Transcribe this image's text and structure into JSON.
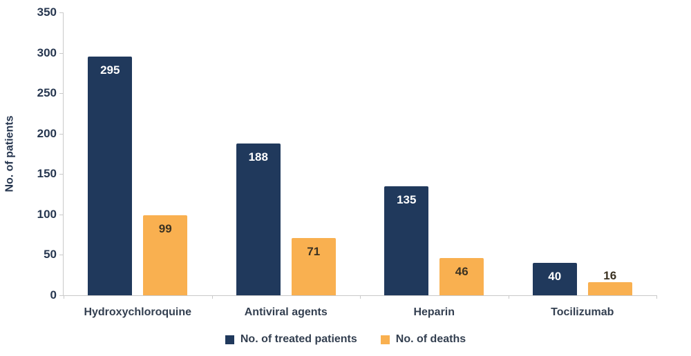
{
  "chart_data": {
    "type": "bar",
    "categories": [
      "Hydroxychloroquine",
      "Antiviral agents",
      "Heparin",
      "Tocilizumab"
    ],
    "series": [
      {
        "name": "No. of treated patients",
        "color": "#20395C",
        "label_color": "#FFFFFF",
        "values": [
          295,
          188,
          135,
          40
        ]
      },
      {
        "name": "No. of deaths",
        "color": "#F9B050",
        "label_color": "#3B3222",
        "values": [
          99,
          71,
          46,
          16
        ]
      }
    ],
    "title": "",
    "xlabel": "",
    "ylabel": "No. of patients",
    "ylim": [
      0,
      350
    ],
    "yticks": [
      0,
      50,
      100,
      150,
      200,
      250,
      300,
      350
    ],
    "grid": false,
    "legend_position": "bottom",
    "value_labels": true
  },
  "colors": {
    "background": "#FFFFFF",
    "axis_line": "#C9C9C9",
    "y_tick_text": "#26364F",
    "category_text": "#333F50",
    "legend_text": "#333F50",
    "y_title_text": "#26364F"
  }
}
